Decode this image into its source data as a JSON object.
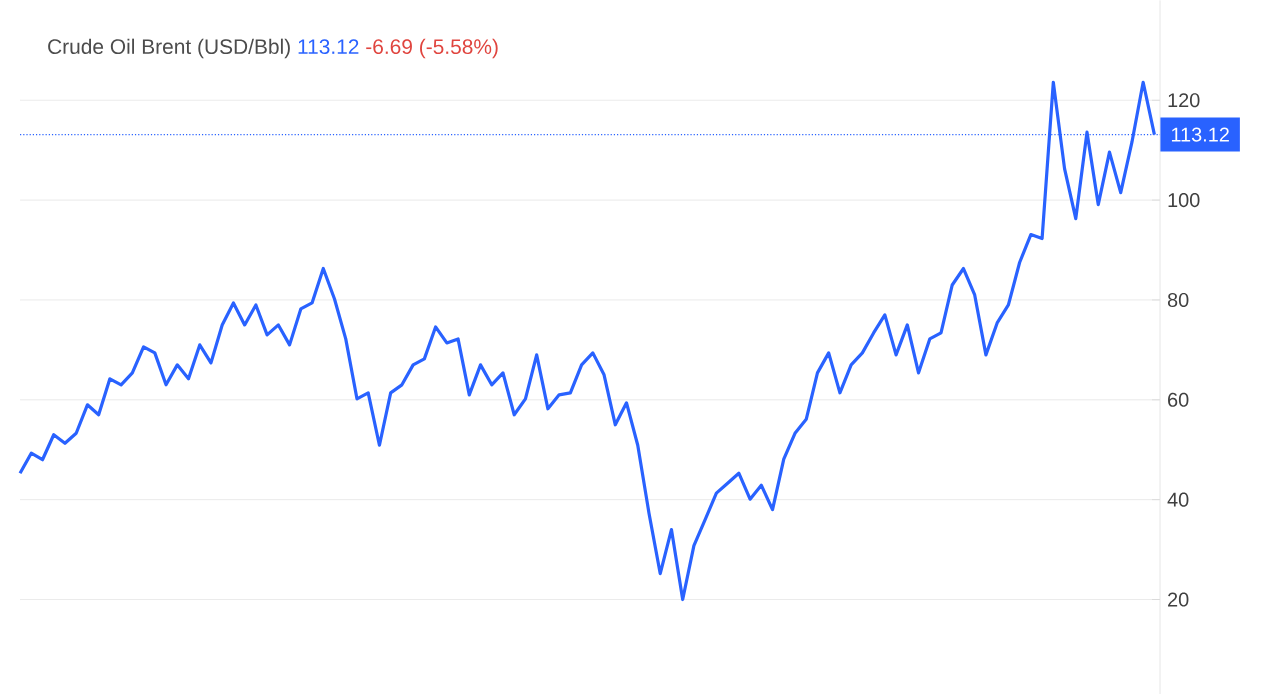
{
  "chart_data": {
    "type": "line",
    "title": "Crude Oil Brent (USD/Bbl)",
    "annotations": [
      "113.12",
      "-6.69 (-5.58%)"
    ],
    "categories": [
      null,
      null,
      null,
      null,
      null,
      null,
      null,
      null,
      null,
      null,
      null,
      null,
      null,
      null,
      null,
      null,
      null,
      null,
      null,
      null,
      null,
      null,
      null,
      null,
      null,
      null,
      null,
      null,
      null,
      null,
      null,
      null,
      null,
      null,
      null,
      null,
      null,
      null,
      null,
      null,
      null,
      null,
      null,
      null,
      null,
      null,
      null,
      null,
      null,
      null,
      null,
      null,
      null,
      null,
      null,
      null,
      null,
      null,
      null,
      null,
      null,
      null,
      null,
      null,
      null,
      null,
      null,
      null,
      null,
      null,
      null,
      null,
      null,
      null,
      null,
      null,
      null,
      null,
      null,
      null,
      null,
      null,
      null,
      null,
      null,
      null,
      null,
      null,
      null,
      null,
      null,
      null,
      null,
      null,
      null,
      null,
      null,
      null,
      null,
      null,
      null,
      null
    ],
    "series": [
      {
        "color": "#2962ff",
        "values": [
          45.3,
          49.3,
          48,
          53,
          51.3,
          53.3,
          59,
          57,
          64.2,
          63,
          65.4,
          70.6,
          69.4,
          63,
          67,
          64.2,
          71,
          67.4,
          75,
          79.4,
          75,
          79,
          73,
          75,
          71,
          78.2,
          79.4,
          86.3,
          80.2,
          72.2,
          60.2,
          61.4,
          50.9,
          61.4,
          63,
          67,
          68.2,
          74.6,
          71.4,
          72.2,
          61,
          67,
          63,
          65.4,
          57,
          60.2,
          69,
          58.2,
          61,
          61.4,
          67,
          69.4,
          65,
          55,
          59.4,
          50.9,
          37.3,
          25.2,
          34,
          20,
          30.8,
          36,
          41.3,
          43.3,
          45.3,
          40.1,
          42.9,
          38,
          48.1,
          53.3,
          56.1,
          65.4,
          69.4,
          61.4,
          67,
          69.4,
          73.4,
          77,
          69,
          75,
          65.4,
          72.2,
          73.4,
          83,
          86.3,
          81,
          69,
          75.4,
          79,
          87.5,
          93.1,
          92.3,
          123.6,
          106.3,
          96.3,
          113.6,
          99.1,
          109.6,
          101.5,
          111.6,
          123.6,
          113.1
        ]
      }
    ],
    "ylim": [
      1,
      140
    ],
    "yticks": [
      20,
      40,
      60,
      80,
      100,
      120
    ],
    "grid": "y",
    "tick_labels": "y",
    "ref_lines": [
      {
        "axis": "y",
        "value": 113.12,
        "label": "113.12",
        "color": "#2962ff",
        "line_style": "dotted"
      }
    ]
  }
}
